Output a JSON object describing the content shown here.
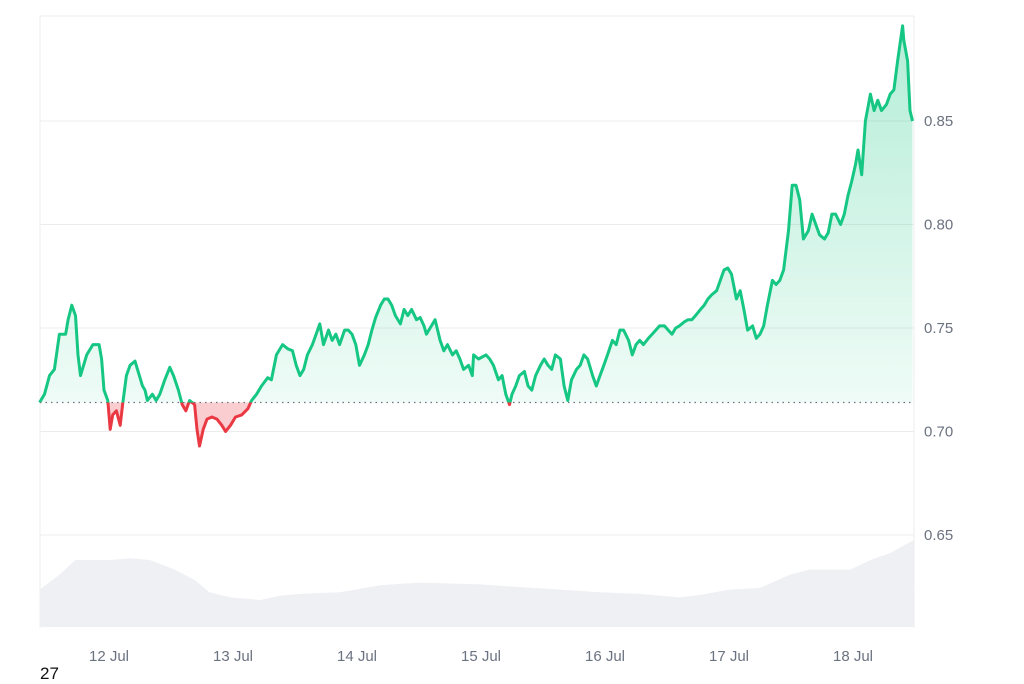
{
  "chart_data": {
    "type": "line",
    "title": "",
    "xlabel": "",
    "ylabel": "",
    "x_unit": "day of July",
    "ylim": [
      0.605,
      0.905
    ],
    "xlim": [
      11.44,
      18.49
    ],
    "y_ticks": [
      "0.85",
      "0.80",
      "0.75",
      "0.70",
      "0.65"
    ],
    "y_tick_values": [
      0.85,
      0.8,
      0.75,
      0.7,
      0.65
    ],
    "x_ticks": [
      "12 Jul",
      "13 Jul",
      "14 Jul",
      "15 Jul",
      "16 Jul",
      "17 Jul",
      "18 Jul"
    ],
    "x_tick_values": [
      12,
      13,
      14,
      15,
      16,
      17,
      18
    ],
    "baseline": 0.714,
    "grid": true,
    "colors": {
      "up": "#16c784",
      "down": "#ea3943",
      "volume": "#eff0f4",
      "grid": "#ececec",
      "baseline": "#9ca3af"
    },
    "series": [
      {
        "points": [
          [
            11.44,
            0.714
          ],
          [
            11.48,
            0.718
          ],
          [
            11.52,
            0.727
          ],
          [
            11.56,
            0.73
          ],
          [
            11.6,
            0.747
          ],
          [
            11.65,
            0.747
          ],
          [
            11.67,
            0.754
          ],
          [
            11.7,
            0.761
          ],
          [
            11.73,
            0.756
          ],
          [
            11.75,
            0.737
          ],
          [
            11.77,
            0.727
          ],
          [
            11.82,
            0.737
          ],
          [
            11.87,
            0.742
          ],
          [
            11.92,
            0.742
          ],
          [
            11.94,
            0.735
          ],
          [
            11.96,
            0.72
          ],
          [
            11.99,
            0.715
          ],
          [
            12.01,
            0.701
          ],
          [
            12.03,
            0.708
          ],
          [
            12.06,
            0.71
          ],
          [
            12.09,
            0.703
          ],
          [
            12.11,
            0.713
          ],
          [
            12.14,
            0.727
          ],
          [
            12.17,
            0.732
          ],
          [
            12.21,
            0.734
          ],
          [
            12.23,
            0.73
          ],
          [
            12.27,
            0.722
          ],
          [
            12.29,
            0.72
          ],
          [
            12.31,
            0.715
          ],
          [
            12.35,
            0.718
          ],
          [
            12.38,
            0.715
          ],
          [
            12.41,
            0.718
          ],
          [
            12.45,
            0.725
          ],
          [
            12.49,
            0.731
          ],
          [
            12.52,
            0.727
          ],
          [
            12.56,
            0.72
          ],
          [
            12.59,
            0.713
          ],
          [
            12.62,
            0.71
          ],
          [
            12.65,
            0.715
          ],
          [
            12.69,
            0.713
          ],
          [
            12.71,
            0.701
          ],
          [
            12.73,
            0.693
          ],
          [
            12.76,
            0.701
          ],
          [
            12.79,
            0.706
          ],
          [
            12.83,
            0.707
          ],
          [
            12.87,
            0.706
          ],
          [
            12.91,
            0.703
          ],
          [
            12.94,
            0.7
          ],
          [
            12.98,
            0.703
          ],
          [
            13.02,
            0.707
          ],
          [
            13.07,
            0.708
          ],
          [
            13.12,
            0.711
          ],
          [
            13.15,
            0.715
          ],
          [
            13.19,
            0.718
          ],
          [
            13.23,
            0.722
          ],
          [
            13.28,
            0.726
          ],
          [
            13.31,
            0.725
          ],
          [
            13.35,
            0.737
          ],
          [
            13.4,
            0.742
          ],
          [
            13.44,
            0.74
          ],
          [
            13.48,
            0.739
          ],
          [
            13.51,
            0.732
          ],
          [
            13.54,
            0.727
          ],
          [
            13.57,
            0.73
          ],
          [
            13.6,
            0.737
          ],
          [
            13.64,
            0.742
          ],
          [
            13.67,
            0.747
          ],
          [
            13.7,
            0.752
          ],
          [
            13.73,
            0.742
          ],
          [
            13.77,
            0.749
          ],
          [
            13.8,
            0.744
          ],
          [
            13.83,
            0.747
          ],
          [
            13.86,
            0.742
          ],
          [
            13.9,
            0.749
          ],
          [
            13.93,
            0.749
          ],
          [
            13.96,
            0.747
          ],
          [
            13.99,
            0.742
          ],
          [
            14.02,
            0.732
          ],
          [
            14.06,
            0.737
          ],
          [
            14.09,
            0.742
          ],
          [
            14.12,
            0.749
          ],
          [
            14.15,
            0.755
          ],
          [
            14.19,
            0.761
          ],
          [
            14.22,
            0.764
          ],
          [
            14.25,
            0.764
          ],
          [
            14.28,
            0.761
          ],
          [
            14.31,
            0.756
          ],
          [
            14.35,
            0.752
          ],
          [
            14.38,
            0.759
          ],
          [
            14.41,
            0.756
          ],
          [
            14.44,
            0.759
          ],
          [
            14.48,
            0.754
          ],
          [
            14.51,
            0.755
          ],
          [
            14.54,
            0.751
          ],
          [
            14.56,
            0.747
          ],
          [
            14.6,
            0.751
          ],
          [
            14.63,
            0.754
          ],
          [
            14.67,
            0.744
          ],
          [
            14.7,
            0.739
          ],
          [
            14.73,
            0.742
          ],
          [
            14.77,
            0.737
          ],
          [
            14.8,
            0.739
          ],
          [
            14.83,
            0.735
          ],
          [
            14.86,
            0.73
          ],
          [
            14.9,
            0.732
          ],
          [
            14.93,
            0.727
          ],
          [
            14.94,
            0.737
          ],
          [
            14.98,
            0.735
          ],
          [
            15.01,
            0.736
          ],
          [
            15.04,
            0.737
          ],
          [
            15.07,
            0.735
          ],
          [
            15.1,
            0.732
          ],
          [
            15.14,
            0.725
          ],
          [
            15.17,
            0.727
          ],
          [
            15.2,
            0.718
          ],
          [
            15.23,
            0.713
          ],
          [
            15.25,
            0.718
          ],
          [
            15.28,
            0.722
          ],
          [
            15.31,
            0.727
          ],
          [
            15.35,
            0.729
          ],
          [
            15.38,
            0.722
          ],
          [
            15.41,
            0.72
          ],
          [
            15.44,
            0.727
          ],
          [
            15.48,
            0.732
          ],
          [
            15.51,
            0.735
          ],
          [
            15.54,
            0.732
          ],
          [
            15.57,
            0.73
          ],
          [
            15.6,
            0.737
          ],
          [
            15.64,
            0.735
          ],
          [
            15.67,
            0.722
          ],
          [
            15.7,
            0.715
          ],
          [
            15.73,
            0.725
          ],
          [
            15.77,
            0.73
          ],
          [
            15.8,
            0.732
          ],
          [
            15.83,
            0.737
          ],
          [
            15.86,
            0.735
          ],
          [
            15.9,
            0.727
          ],
          [
            15.93,
            0.722
          ],
          [
            15.96,
            0.727
          ],
          [
            15.99,
            0.732
          ],
          [
            16.02,
            0.737
          ],
          [
            16.06,
            0.744
          ],
          [
            16.09,
            0.742
          ],
          [
            16.12,
            0.749
          ],
          [
            16.15,
            0.749
          ],
          [
            16.19,
            0.744
          ],
          [
            16.22,
            0.737
          ],
          [
            16.25,
            0.742
          ],
          [
            16.28,
            0.744
          ],
          [
            16.31,
            0.742
          ],
          [
            16.35,
            0.745
          ],
          [
            16.38,
            0.747
          ],
          [
            16.41,
            0.749
          ],
          [
            16.44,
            0.751
          ],
          [
            16.48,
            0.751
          ],
          [
            16.51,
            0.749
          ],
          [
            16.54,
            0.747
          ],
          [
            16.57,
            0.75
          ],
          [
            16.6,
            0.751
          ],
          [
            16.64,
            0.753
          ],
          [
            16.67,
            0.754
          ],
          [
            16.7,
            0.754
          ],
          [
            16.73,
            0.756
          ],
          [
            16.77,
            0.759
          ],
          [
            16.8,
            0.761
          ],
          [
            16.83,
            0.764
          ],
          [
            16.86,
            0.766
          ],
          [
            16.9,
            0.768
          ],
          [
            16.93,
            0.773
          ],
          [
            16.96,
            0.778
          ],
          [
            16.99,
            0.779
          ],
          [
            17.02,
            0.776
          ],
          [
            17.06,
            0.764
          ],
          [
            17.09,
            0.768
          ],
          [
            17.12,
            0.759
          ],
          [
            17.15,
            0.749
          ],
          [
            17.19,
            0.751
          ],
          [
            17.22,
            0.745
          ],
          [
            17.25,
            0.747
          ],
          [
            17.28,
            0.751
          ],
          [
            17.31,
            0.761
          ],
          [
            17.35,
            0.773
          ],
          [
            17.38,
            0.771
          ],
          [
            17.41,
            0.773
          ],
          [
            17.44,
            0.778
          ],
          [
            17.48,
            0.797
          ],
          [
            17.51,
            0.819
          ],
          [
            17.54,
            0.819
          ],
          [
            17.57,
            0.812
          ],
          [
            17.6,
            0.793
          ],
          [
            17.64,
            0.797
          ],
          [
            17.67,
            0.805
          ],
          [
            17.7,
            0.8
          ],
          [
            17.73,
            0.795
          ],
          [
            17.77,
            0.793
          ],
          [
            17.8,
            0.796
          ],
          [
            17.83,
            0.805
          ],
          [
            17.86,
            0.805
          ],
          [
            17.9,
            0.8
          ],
          [
            17.93,
            0.805
          ],
          [
            17.96,
            0.814
          ],
          [
            17.99,
            0.821
          ],
          [
            18.02,
            0.829
          ],
          [
            18.04,
            0.836
          ],
          [
            18.07,
            0.824
          ],
          [
            18.1,
            0.85
          ],
          [
            18.14,
            0.863
          ],
          [
            18.17,
            0.855
          ],
          [
            18.2,
            0.86
          ],
          [
            18.23,
            0.855
          ],
          [
            18.27,
            0.858
          ],
          [
            18.3,
            0.863
          ],
          [
            18.33,
            0.865
          ],
          [
            18.36,
            0.879
          ],
          [
            18.4,
            0.896
          ],
          [
            18.41,
            0.889
          ],
          [
            18.44,
            0.879
          ],
          [
            18.46,
            0.855
          ],
          [
            18.48,
            0.85
          ]
        ]
      }
    ],
    "volume_relative": [
      [
        11.44,
        0.43
      ],
      [
        11.6,
        0.6
      ],
      [
        11.73,
        0.77
      ],
      [
        12.01,
        0.77
      ],
      [
        12.17,
        0.79
      ],
      [
        12.33,
        0.77
      ],
      [
        12.53,
        0.66
      ],
      [
        12.69,
        0.54
      ],
      [
        12.81,
        0.4
      ],
      [
        12.98,
        0.34
      ],
      [
        13.22,
        0.31
      ],
      [
        13.38,
        0.36
      ],
      [
        13.54,
        0.38
      ],
      [
        13.86,
        0.4
      ],
      [
        14.19,
        0.48
      ],
      [
        14.51,
        0.51
      ],
      [
        14.99,
        0.49
      ],
      [
        15.31,
        0.46
      ],
      [
        15.64,
        0.43
      ],
      [
        15.96,
        0.4
      ],
      [
        16.28,
        0.38
      ],
      [
        16.6,
        0.34
      ],
      [
        16.77,
        0.37
      ],
      [
        17.01,
        0.43
      ],
      [
        17.25,
        0.45
      ],
      [
        17.49,
        0.6
      ],
      [
        17.65,
        0.66
      ],
      [
        17.98,
        0.66
      ],
      [
        18.14,
        0.77
      ],
      [
        18.3,
        0.85
      ],
      [
        18.49,
        1.0
      ]
    ]
  },
  "footer": {
    "corner_label": "27"
  }
}
